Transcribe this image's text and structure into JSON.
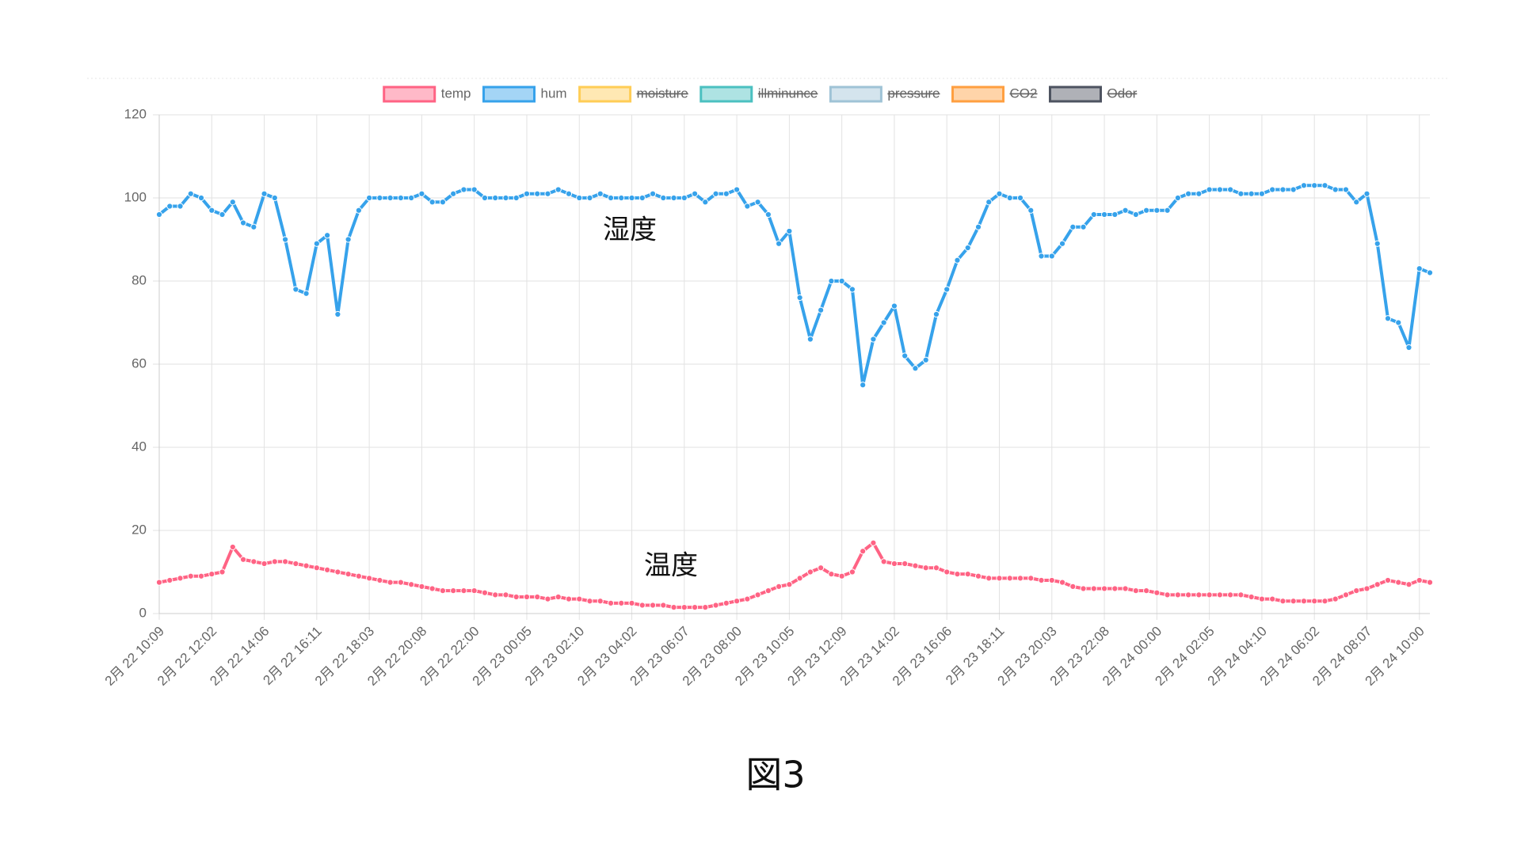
{
  "chart_data": {
    "type": "line",
    "legend": "top",
    "grid": true,
    "ylim": [
      0,
      120
    ],
    "yticks": [
      0,
      20,
      40,
      60,
      80,
      100,
      120
    ],
    "annotations": [
      {
        "text": "湿度",
        "series": 1
      },
      {
        "text": "温度",
        "series": 0
      }
    ],
    "caption": "図3",
    "categories": [
      "2月 22 10:09",
      null,
      null,
      null,
      null,
      "2月 22 12:02",
      null,
      null,
      null,
      null,
      "2月 22 14:06",
      null,
      null,
      null,
      null,
      "2月 22 16:11",
      null,
      null,
      null,
      null,
      "2月 22 18:03",
      null,
      null,
      null,
      null,
      "2月 22 20:08",
      null,
      null,
      null,
      null,
      "2月 22 22:00",
      null,
      null,
      null,
      null,
      "2月 23 00:05",
      null,
      null,
      null,
      null,
      "2月 23 02:10",
      null,
      null,
      null,
      null,
      "2月 23 04:02",
      null,
      null,
      null,
      null,
      "2月 23 06:07",
      null,
      null,
      null,
      null,
      "2月 23 08:00",
      null,
      null,
      null,
      null,
      "2月 23 10:05",
      null,
      null,
      null,
      null,
      "2月 23 12:09",
      null,
      null,
      null,
      null,
      "2月 23 14:02",
      null,
      null,
      null,
      null,
      "2月 23 16:06",
      null,
      null,
      null,
      null,
      "2月 23 18:11",
      null,
      null,
      null,
      null,
      "2月 23 20:03",
      null,
      null,
      null,
      null,
      "2月 23 22:08",
      null,
      null,
      null,
      null,
      "2月 24 00:00",
      null,
      null,
      null,
      null,
      "2月 24 02:05",
      null,
      null,
      null,
      null,
      "2月 24 04:10",
      null,
      null,
      null,
      null,
      "2月 24 06:02",
      null,
      null,
      null,
      null,
      "2月 24 08:07",
      null,
      null,
      null,
      null,
      "2月 24 10:00",
      null
    ],
    "series": [
      {
        "name": "temp",
        "color": "#ff6384",
        "values": [
          7.5,
          8,
          8.5,
          9,
          9,
          9.5,
          10,
          16,
          13,
          12.5,
          12,
          12.5,
          12.5,
          12,
          11.5,
          11,
          10.5,
          10,
          9.5,
          9,
          8.5,
          8,
          7.5,
          7.5,
          7,
          6.5,
          6,
          5.5,
          5.5,
          5.5,
          5.5,
          5,
          4.5,
          4.5,
          4,
          4,
          4,
          3.5,
          4,
          3.5,
          3.5,
          3,
          3,
          2.5,
          2.5,
          2.5,
          2,
          2,
          2,
          1.5,
          1.5,
          1.5,
          1.5,
          2,
          2.5,
          3,
          3.5,
          4.5,
          5.5,
          6.5,
          7,
          8.5,
          10,
          11,
          9.5,
          9,
          10,
          15,
          17,
          12.5,
          12,
          12,
          11.5,
          11,
          11,
          10,
          9.5,
          9.5,
          9,
          8.5,
          8.5,
          8.5,
          8.5,
          8.5,
          8,
          8,
          7.5,
          6.5,
          6,
          6,
          6,
          6,
          6,
          5.5,
          5.5,
          5,
          4.5,
          4.5,
          4.5,
          4.5,
          4.5,
          4.5,
          4.5,
          4.5,
          4,
          3.5,
          3.5,
          3,
          3,
          3,
          3,
          3,
          3.5,
          4.5,
          5.5,
          6,
          7,
          8,
          7.5,
          7,
          8,
          7.5
        ]
      },
      {
        "name": "hum",
        "color": "#36a2eb",
        "values": [
          96,
          98,
          98,
          101,
          100,
          97,
          96,
          99,
          94,
          93,
          101,
          100,
          90,
          78,
          77,
          89,
          91,
          72,
          90,
          97,
          100,
          100,
          100,
          100,
          100,
          101,
          99,
          99,
          101,
          102,
          102,
          100,
          100,
          100,
          100,
          101,
          101,
          101,
          102,
          101,
          100,
          100,
          101,
          100,
          100,
          100,
          100,
          101,
          100,
          100,
          100,
          101,
          99,
          101,
          101,
          102,
          98,
          99,
          96,
          89,
          92,
          76,
          66,
          73,
          80,
          80,
          78,
          55,
          66,
          70,
          74,
          62,
          59,
          61,
          72,
          78,
          85,
          88,
          93,
          99,
          101,
          100,
          100,
          97,
          86,
          86,
          89,
          93,
          93,
          96,
          96,
          96,
          97,
          96,
          97,
          97,
          97,
          100,
          101,
          101,
          102,
          102,
          102,
          101,
          101,
          101,
          102,
          102,
          102,
          103,
          103,
          103,
          102,
          102,
          99,
          101,
          89,
          71,
          70,
          64,
          83,
          82
        ]
      },
      {
        "name": "moisture",
        "color": "#ffcd56",
        "hidden": true
      },
      {
        "name": "illminunce",
        "color": "#4bc0c0",
        "hidden": true
      },
      {
        "name": "pressure",
        "color": "#9fc3d6",
        "hidden": true
      },
      {
        "name": "CO2",
        "color": "#ff9f40",
        "hidden": true
      },
      {
        "name": "Odor",
        "color": "#4d5360",
        "hidden": true
      }
    ]
  }
}
